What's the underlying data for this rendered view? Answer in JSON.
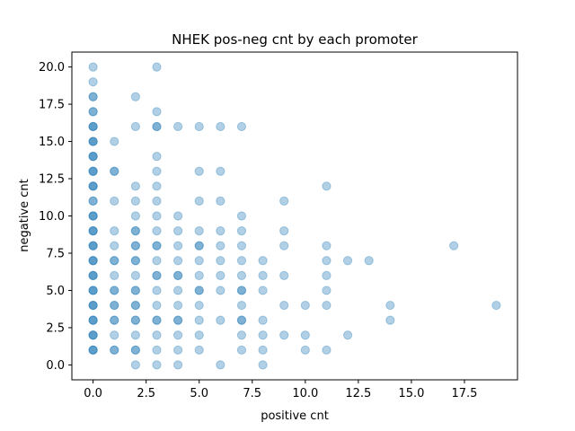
{
  "chart_data": {
    "type": "scatter",
    "title": "NHEK pos-neg cnt by each promoter",
    "xlabel": "positive cnt",
    "ylabel": "negative cnt",
    "xlim": [
      -1,
      20
    ],
    "ylim": [
      -1,
      21
    ],
    "xticks": [
      "0.0",
      "2.5",
      "5.0",
      "7.5",
      "10.0",
      "12.5",
      "15.0",
      "17.5"
    ],
    "xtick_values": [
      0,
      2.5,
      5,
      7.5,
      10,
      12.5,
      15,
      17.5
    ],
    "yticks": [
      "0.0",
      "2.5",
      "5.0",
      "7.5",
      "10.0",
      "12.5",
      "15.0",
      "17.5",
      "20.0"
    ],
    "ytick_values": [
      0,
      2.5,
      5,
      7.5,
      10,
      12.5,
      15,
      17.5,
      20
    ],
    "grid": false,
    "marker_color": "#1f77b4",
    "marker_alpha": 0.35,
    "points": [
      [
        0,
        1
      ],
      [
        0,
        2
      ],
      [
        0,
        3
      ],
      [
        0,
        4
      ],
      [
        0,
        5
      ],
      [
        0,
        6
      ],
      [
        0,
        7
      ],
      [
        0,
        8
      ],
      [
        0,
        9
      ],
      [
        0,
        10
      ],
      [
        0,
        11
      ],
      [
        0,
        12
      ],
      [
        0,
        13
      ],
      [
        0,
        14
      ],
      [
        0,
        15
      ],
      [
        0,
        16
      ],
      [
        0,
        17
      ],
      [
        0,
        18
      ],
      [
        0,
        19
      ],
      [
        0,
        20
      ],
      [
        0,
        1
      ],
      [
        0,
        2
      ],
      [
        0,
        3
      ],
      [
        0,
        4
      ],
      [
        0,
        5
      ],
      [
        0,
        6
      ],
      [
        0,
        7
      ],
      [
        0,
        8
      ],
      [
        0,
        9
      ],
      [
        0,
        10
      ],
      [
        0,
        11
      ],
      [
        0,
        12
      ],
      [
        0,
        13
      ],
      [
        0,
        14
      ],
      [
        0,
        15
      ],
      [
        0,
        16
      ],
      [
        0,
        17
      ],
      [
        0,
        18
      ],
      [
        0,
        1
      ],
      [
        0,
        2
      ],
      [
        0,
        3
      ],
      [
        0,
        4
      ],
      [
        0,
        5
      ],
      [
        0,
        6
      ],
      [
        0,
        7
      ],
      [
        0,
        8
      ],
      [
        0,
        9
      ],
      [
        0,
        10
      ],
      [
        0,
        12
      ],
      [
        0,
        13
      ],
      [
        0,
        14
      ],
      [
        0,
        15
      ],
      [
        0,
        16
      ],
      [
        1,
        1
      ],
      [
        1,
        2
      ],
      [
        1,
        3
      ],
      [
        1,
        4
      ],
      [
        1,
        5
      ],
      [
        1,
        6
      ],
      [
        1,
        7
      ],
      [
        1,
        8
      ],
      [
        1,
        9
      ],
      [
        1,
        11
      ],
      [
        1,
        13
      ],
      [
        1,
        15
      ],
      [
        1,
        1
      ],
      [
        1,
        3
      ],
      [
        1,
        4
      ],
      [
        1,
        5
      ],
      [
        1,
        7
      ],
      [
        1,
        13
      ],
      [
        2,
        0
      ],
      [
        2,
        1
      ],
      [
        2,
        2
      ],
      [
        2,
        3
      ],
      [
        2,
        4
      ],
      [
        2,
        5
      ],
      [
        2,
        6
      ],
      [
        2,
        7
      ],
      [
        2,
        8
      ],
      [
        2,
        9
      ],
      [
        2,
        10
      ],
      [
        2,
        11
      ],
      [
        2,
        12
      ],
      [
        2,
        16
      ],
      [
        2,
        18
      ],
      [
        2,
        1
      ],
      [
        2,
        3
      ],
      [
        2,
        4
      ],
      [
        2,
        5
      ],
      [
        2,
        7
      ],
      [
        2,
        8
      ],
      [
        2,
        9
      ],
      [
        3,
        0
      ],
      [
        3,
        1
      ],
      [
        3,
        2
      ],
      [
        3,
        3
      ],
      [
        3,
        4
      ],
      [
        3,
        5
      ],
      [
        3,
        6
      ],
      [
        3,
        7
      ],
      [
        3,
        8
      ],
      [
        3,
        9
      ],
      [
        3,
        10
      ],
      [
        3,
        11
      ],
      [
        3,
        12
      ],
      [
        3,
        13
      ],
      [
        3,
        14
      ],
      [
        3,
        16
      ],
      [
        3,
        17
      ],
      [
        3,
        20
      ],
      [
        3,
        3
      ],
      [
        3,
        6
      ],
      [
        3,
        8
      ],
      [
        3,
        16
      ],
      [
        4,
        0
      ],
      [
        4,
        1
      ],
      [
        4,
        2
      ],
      [
        4,
        3
      ],
      [
        4,
        4
      ],
      [
        4,
        5
      ],
      [
        4,
        6
      ],
      [
        4,
        7
      ],
      [
        4,
        8
      ],
      [
        4,
        9
      ],
      [
        4,
        10
      ],
      [
        4,
        16
      ],
      [
        4,
        6
      ],
      [
        4,
        3
      ],
      [
        5,
        1
      ],
      [
        5,
        2
      ],
      [
        5,
        3
      ],
      [
        5,
        4
      ],
      [
        5,
        5
      ],
      [
        5,
        6
      ],
      [
        5,
        7
      ],
      [
        5,
        8
      ],
      [
        5,
        9
      ],
      [
        5,
        11
      ],
      [
        5,
        13
      ],
      [
        5,
        16
      ],
      [
        5,
        5
      ],
      [
        5,
        8
      ],
      [
        6,
        0
      ],
      [
        6,
        3
      ],
      [
        6,
        5
      ],
      [
        6,
        6
      ],
      [
        6,
        7
      ],
      [
        6,
        8
      ],
      [
        6,
        9
      ],
      [
        6,
        11
      ],
      [
        6,
        13
      ],
      [
        6,
        16
      ],
      [
        7,
        1
      ],
      [
        7,
        2
      ],
      [
        7,
        3
      ],
      [
        7,
        4
      ],
      [
        7,
        5
      ],
      [
        7,
        6
      ],
      [
        7,
        7
      ],
      [
        7,
        8
      ],
      [
        7,
        9
      ],
      [
        7,
        10
      ],
      [
        7,
        16
      ],
      [
        7,
        3
      ],
      [
        7,
        5
      ],
      [
        8,
        0
      ],
      [
        8,
        1
      ],
      [
        8,
        2
      ],
      [
        8,
        3
      ],
      [
        8,
        5
      ],
      [
        8,
        6
      ],
      [
        8,
        7
      ],
      [
        9,
        2
      ],
      [
        9,
        4
      ],
      [
        9,
        6
      ],
      [
        9,
        8
      ],
      [
        9,
        9
      ],
      [
        9,
        11
      ],
      [
        10,
        1
      ],
      [
        10,
        2
      ],
      [
        10,
        4
      ],
      [
        11,
        1
      ],
      [
        11,
        4
      ],
      [
        11,
        5
      ],
      [
        11,
        6
      ],
      [
        11,
        7
      ],
      [
        11,
        8
      ],
      [
        11,
        12
      ],
      [
        12,
        2
      ],
      [
        12,
        7
      ],
      [
        13,
        7
      ],
      [
        14,
        3
      ],
      [
        14,
        4
      ],
      [
        17,
        8
      ],
      [
        19,
        4
      ]
    ]
  }
}
